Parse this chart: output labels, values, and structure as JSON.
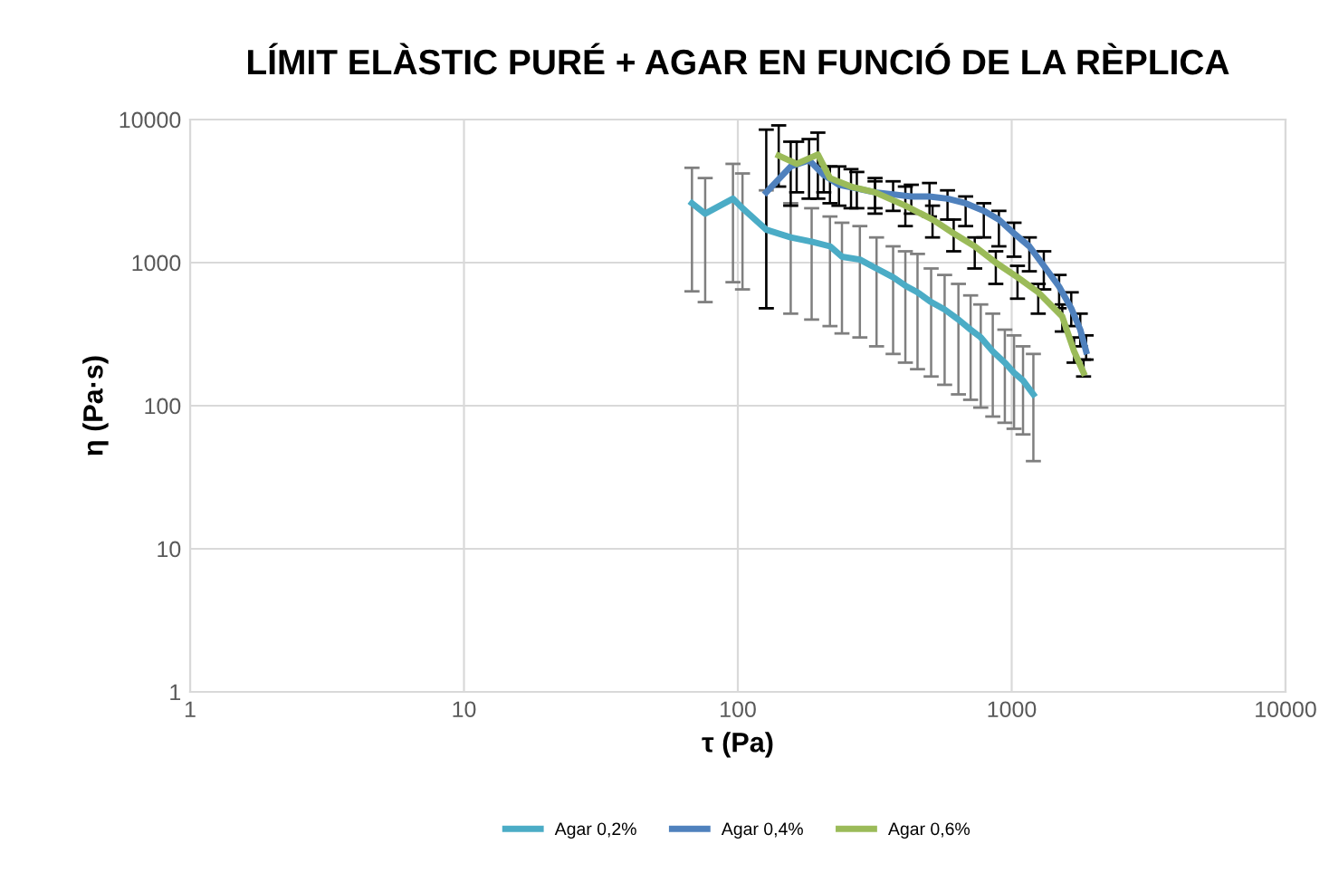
{
  "chart_data": {
    "type": "line",
    "title": "LÍMIT ELÀSTIC PURÉ + AGAR EN FUNCIÓ DE LA RÈPLICA",
    "xlabel": "τ (Pa)",
    "ylabel": "η (Pa·s)",
    "log": "xy",
    "xlim": [
      1,
      10000
    ],
    "ylim": [
      1,
      10000
    ],
    "xticks": [
      1,
      10,
      100,
      1000,
      10000
    ],
    "yticks": [
      1,
      10,
      100,
      1000,
      10000
    ],
    "grid": true,
    "legend": "bottom",
    "marker": "none",
    "line_style": "solid",
    "series": [
      {
        "name": "Agar 0,2%",
        "color": "#4bacc6",
        "x": [
          68,
          76,
          96,
          104,
          127,
          156,
          186,
          217,
          240,
          279,
          321,
          369,
          409,
          453,
          508,
          569,
          639,
          708,
          771,
          853,
          944,
          1020,
          1100,
          1200
        ],
        "values": [
          2600,
          2200,
          2800,
          2400,
          1700,
          1500,
          1400,
          1300,
          1100,
          1050,
          910,
          790,
          690,
          620,
          530,
          470,
          400,
          340,
          300,
          240,
          200,
          170,
          150,
          120
        ],
        "errors": [
          [
            630,
            4600
          ],
          [
            530,
            3900
          ],
          [
            730,
            4900
          ],
          [
            650,
            4200
          ],
          [
            480,
            3200
          ],
          [
            440,
            2600
          ],
          [
            400,
            2400
          ],
          [
            360,
            2100
          ],
          [
            320,
            1900
          ],
          [
            300,
            1800
          ],
          [
            260,
            1500
          ],
          [
            230,
            1300
          ],
          [
            200,
            1200
          ],
          [
            180,
            1150
          ],
          [
            160,
            910
          ],
          [
            140,
            820
          ],
          [
            120,
            710
          ],
          [
            110,
            590
          ],
          [
            97,
            510
          ],
          [
            84,
            440
          ],
          [
            76,
            340
          ],
          [
            69,
            310
          ],
          [
            63,
            260
          ],
          [
            41,
            230
          ]
        ]
      },
      {
        "name": "Agar 0,4%",
        "color": "#4f81bd",
        "x": [
          127,
          156,
          182,
          206,
          234,
          272,
          317,
          369,
          430,
          501,
          583,
          679,
          791,
          898,
          1020,
          1160,
          1310,
          1490,
          1650,
          1780,
          1870
        ],
        "values": [
          3100,
          4700,
          5200,
          4100,
          3500,
          3300,
          3100,
          3000,
          2900,
          2900,
          2800,
          2600,
          2300,
          2000,
          1600,
          1300,
          950,
          680,
          480,
          340,
          240
        ],
        "errors": [
          [
            480,
            8500
          ],
          [
            2500,
            7000
          ],
          [
            2800,
            7300
          ],
          [
            3100,
            4700
          ],
          [
            2500,
            4700
          ],
          [
            2400,
            4300
          ],
          [
            2400,
            3900
          ],
          [
            2300,
            3700
          ],
          [
            2200,
            3500
          ],
          [
            2100,
            3600
          ],
          [
            2000,
            3200
          ],
          [
            1800,
            2900
          ],
          [
            1500,
            2600
          ],
          [
            1300,
            2300
          ],
          [
            1100,
            1900
          ],
          [
            870,
            1500
          ],
          [
            650,
            1200
          ],
          [
            480,
            820
          ],
          [
            360,
            620
          ],
          [
            260,
            440
          ],
          [
            210,
            310
          ]
        ]
      },
      {
        "name": "Agar 0,6%",
        "color": "#9bbb59",
        "x": [
          141,
          164,
          196,
          217,
          259,
          317,
          409,
          514,
          614,
          733,
          875,
          1050,
          1250,
          1530,
          1690,
          1830
        ],
        "values": [
          5600,
          4900,
          5700,
          3900,
          3400,
          3100,
          2500,
          2000,
          1600,
          1300,
          1000,
          790,
          620,
          420,
          240,
          170
        ],
        "errors": [
          [
            3400,
            9100
          ],
          [
            3100,
            7000
          ],
          [
            2800,
            8100
          ],
          [
            2600,
            4700
          ],
          [
            2400,
            4500
          ],
          [
            2200,
            3700
          ],
          [
            1800,
            3400
          ],
          [
            1500,
            2500
          ],
          [
            1200,
            2000
          ],
          [
            910,
            1500
          ],
          [
            710,
            1200
          ],
          [
            560,
            950
          ],
          [
            440,
            710
          ],
          [
            330,
            510
          ],
          [
            200,
            300
          ],
          [
            160,
            210
          ]
        ]
      }
    ]
  }
}
